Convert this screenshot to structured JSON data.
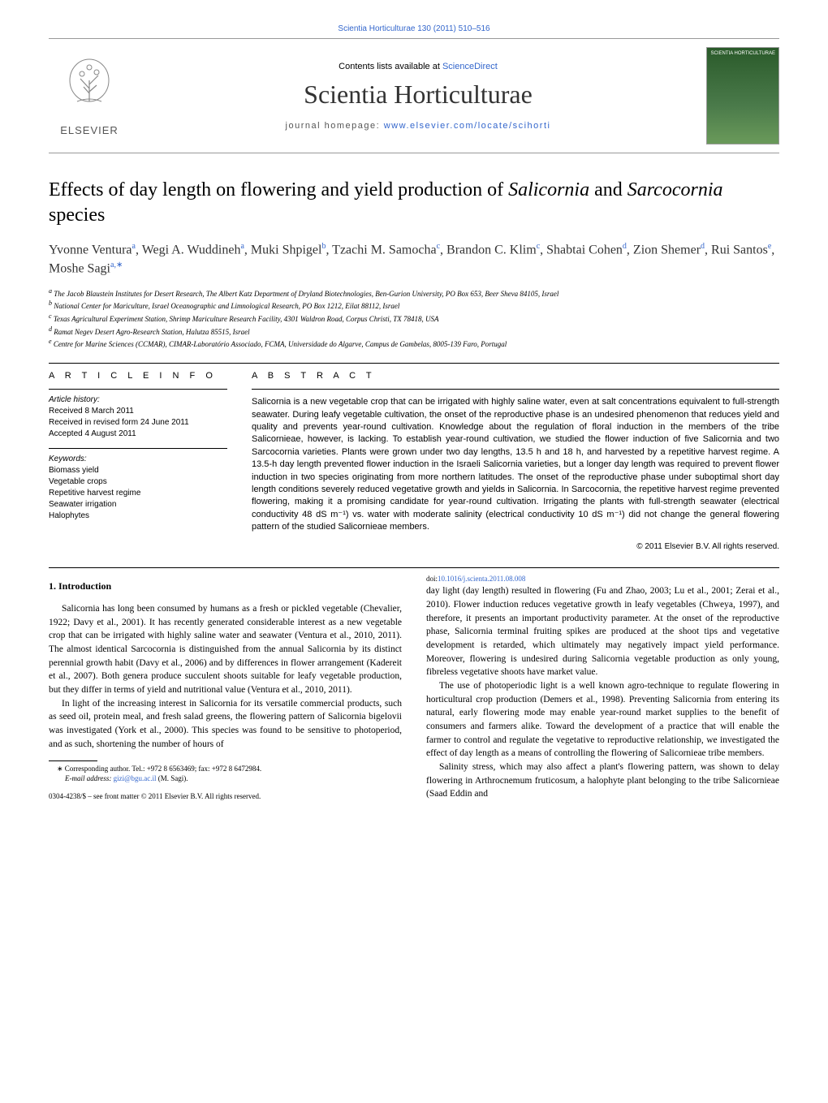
{
  "top_citation": "Scientia Horticulturae 130 (2011) 510–516",
  "header": {
    "contents_text": "Contents lists available at ",
    "contents_link": "ScienceDirect",
    "journal_name": "Scientia Horticulturae",
    "homepage_label": "journal homepage: ",
    "homepage_url": "www.elsevier.com/locate/scihorti",
    "elsevier": "ELSEVIER",
    "cover_label": "SCIENTIA HORTICULTURAE"
  },
  "title_pre": "Effects of day length on flowering and yield production of ",
  "title_sal": "Salicornia",
  "title_mid": " and ",
  "title_sar": "Sarcocornia",
  "title_post": " species",
  "authors_html": "Yvonne Ventura<sup>a</sup>, Wegi A. Wuddineh<sup>a</sup>, Muki Shpigel<sup>b</sup>, Tzachi M. Samocha<sup>c</sup>, Brandon C. Klim<sup>c</sup>, Shabtai Cohen<sup>d</sup>, Zion Shemer<sup>d</sup>, Rui Santos<sup>e</sup>, Moshe Sagi<sup>a,∗</sup>",
  "affiliations": [
    "a The Jacob Blaustein Institutes for Desert Research, The Albert Katz Department of Dryland Biotechnologies, Ben-Gurion University, PO Box 653, Beer Sheva 84105, Israel",
    "b National Center for Mariculture, Israel Oceanographic and Limnological Research, PO Box 1212, Eilat 88112, Israel",
    "c Texas Agricultural Experiment Station, Shrimp Mariculture Research Facility, 4301 Waldron Road, Corpus Christi, TX 78418, USA",
    "d Ramat Negev Desert Agro-Research Station, Halutza 85515, Israel",
    "e Centre for Marine Sciences (CCMAR), CIMAR-Laboratório Associado, FCMA, Universidade do Algarve, Campus de Gambelas, 8005-139 Faro, Portugal"
  ],
  "info_heading": "A R T I C L E   I N F O",
  "history_head": "Article history:",
  "history": [
    "Received 8 March 2011",
    "Received in revised form 24 June 2011",
    "Accepted 4 August 2011"
  ],
  "keywords_head": "Keywords:",
  "keywords": [
    "Biomass yield",
    "Vegetable crops",
    "Repetitive harvest regime",
    "Seawater irrigation",
    "Halophytes"
  ],
  "abstract_heading": "A B S T R A C T",
  "abstract": "Salicornia is a new vegetable crop that can be irrigated with highly saline water, even at salt concentrations equivalent to full-strength seawater. During leafy vegetable cultivation, the onset of the reproductive phase is an undesired phenomenon that reduces yield and quality and prevents year-round cultivation. Knowledge about the regulation of floral induction in the members of the tribe Salicornieae, however, is lacking. To establish year-round cultivation, we studied the flower induction of five Salicornia and two Sarcocornia varieties. Plants were grown under two day lengths, 13.5 h and 18 h, and harvested by a repetitive harvest regime. A 13.5-h day length prevented flower induction in the Israeli Salicornia varieties, but a longer day length was required to prevent flower induction in two species originating from more northern latitudes. The onset of the reproductive phase under suboptimal short day length conditions severely reduced vegetative growth and yields in Salicornia. In Sarcocornia, the repetitive harvest regime prevented flowering, making it a promising candidate for year-round cultivation. Irrigating the plants with full-strength seawater (electrical conductivity 48 dS m⁻¹) vs. water with moderate salinity (electrical conductivity 10 dS m⁻¹) did not change the general flowering pattern of the studied Salicornieae members.",
  "copyright": "© 2011 Elsevier B.V. All rights reserved.",
  "section1_heading": "1.  Introduction",
  "p1": "Salicornia has long been consumed by humans as a fresh or pickled vegetable (Chevalier, 1922; Davy et al., 2001). It has recently generated considerable interest as a new vegetable crop that can be irrigated with highly saline water and seawater (Ventura et al., 2010, 2011). The almost identical Sarcocornia is distinguished from the annual Salicornia by its distinct perennial growth habit (Davy et al., 2006) and by differences in flower arrangement (Kadereit et al., 2007). Both genera produce succulent shoots suitable for leafy vegetable production, but they differ in terms of yield and nutritional value (Ventura et al., 2010, 2011).",
  "p2": "In light of the increasing interest in Salicornia for its versatile commercial products, such as seed oil, protein meal, and fresh salad greens, the flowering pattern of Salicornia bigelovii was investigated (York et al., 2000). This species was found to be sensitive to photoperiod, and as such, shortening the number of hours of",
  "p3": "day light (day length) resulted in flowering (Fu and Zhao, 2003; Lu et al., 2001; Zerai et al., 2010). Flower induction reduces vegetative growth in leafy vegetables (Chweya, 1997), and therefore, it presents an important productivity parameter. At the onset of the reproductive phase, Salicornia terminal fruiting spikes are produced at the shoot tips and vegetative development is retarded, which ultimately may negatively impact yield performance. Moreover, flowering is undesired during Salicornia vegetable production as only young, fibreless vegetative shoots have market value.",
  "p4": "The use of photoperiodic light is a well known agro-technique to regulate flowering in horticultural crop production (Demers et al., 1998). Preventing Salicornia from entering its natural, early flowering mode may enable year-round market supplies to the benefit of consumers and farmers alike. Toward the development of a practice that will enable the farmer to control and regulate the vegetative to reproductive relationship, we investigated the effect of day length as a means of controlling the flowering of Salicornieae tribe members.",
  "p5": "Salinity stress, which may also affect a plant's flowering pattern, was shown to delay flowering in Arthrocnemum fruticosum, a halophyte plant belonging to the tribe Salicornieae (Saad Eddin and",
  "footnote_corr": "∗ Corresponding author. Tel.: +972 8 6563469; fax: +972 8 6472984.",
  "footnote_email_label": "E-mail address: ",
  "footnote_email": "gizi@bgu.ac.il",
  "footnote_email_post": " (M. Sagi).",
  "front_matter": "0304-4238/$ – see front matter © 2011 Elsevier B.V. All rights reserved.",
  "doi_label": "doi:",
  "doi": "10.1016/j.scienta.2011.08.008"
}
